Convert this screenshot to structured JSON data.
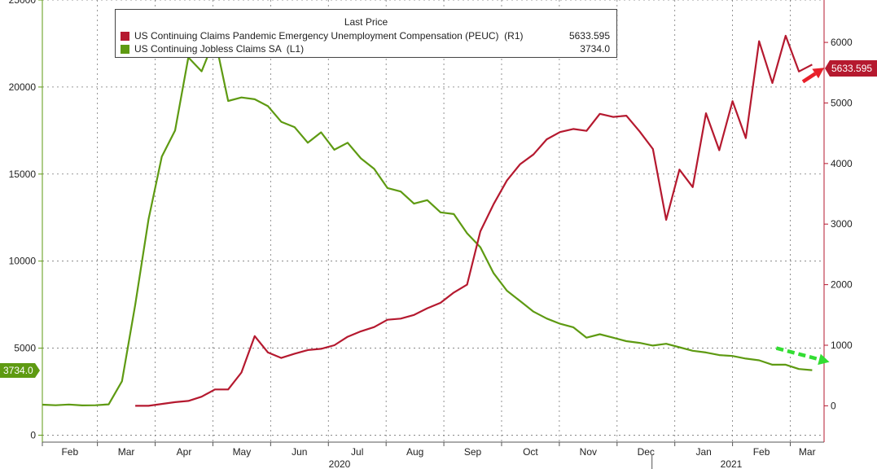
{
  "chart_data": {
    "type": "line",
    "legend": {
      "title": "Last Price",
      "placement": "top-left",
      "entries": [
        {
          "label": "US Continuing Claims Pandemic Emergency Unemployment Compensation (PEUC)  (R1)",
          "value": "5633.595",
          "color": "#b5192f"
        },
        {
          "label": "US Continuing Jobless Claims SA  (L1)",
          "value": "3734.0",
          "color": "#5e9a12"
        }
      ]
    },
    "x_axis": {
      "months": [
        "Feb",
        "Mar",
        "Apr",
        "May",
        "Jun",
        "Jul",
        "Aug",
        "Sep",
        "Oct",
        "Nov",
        "Dec",
        "Jan",
        "Feb",
        "Mar"
      ],
      "years": [
        "2020",
        "2021"
      ]
    },
    "y_left": {
      "ticks": [
        "0",
        "5000",
        "10000",
        "15000",
        "20000",
        "25000"
      ],
      "range": [
        -400,
        25000
      ]
    },
    "y_right": {
      "ticks": [
        "0",
        "1000",
        "2000",
        "3000",
        "4000",
        "5000",
        "6000"
      ],
      "range": [
        -600,
        6700
      ]
    },
    "last_value_labels": {
      "left": "3734.0",
      "right": "5633.595"
    },
    "grid": true,
    "series": [
      {
        "name": "US Continuing Jobless Claims SA",
        "axis": "left",
        "color": "#5e9a12",
        "values": [
          [
            0,
            1750
          ],
          [
            1,
            1720
          ],
          [
            2,
            1760
          ],
          [
            3,
            1710
          ],
          [
            4,
            1720
          ],
          [
            5,
            1770
          ],
          [
            6,
            3100
          ],
          [
            7,
            7500
          ],
          [
            8,
            12400
          ],
          [
            9,
            16000
          ],
          [
            10,
            17500
          ],
          [
            11,
            21700
          ],
          [
            12,
            20900
          ],
          [
            13,
            22800
          ],
          [
            14,
            19200
          ],
          [
            15,
            19400
          ],
          [
            16,
            19300
          ],
          [
            17,
            18900
          ],
          [
            18,
            18000
          ],
          [
            19,
            17700
          ],
          [
            20,
            16800
          ],
          [
            21,
            17400
          ],
          [
            22,
            16400
          ],
          [
            23,
            16800
          ],
          [
            24,
            15900
          ],
          [
            25,
            15300
          ],
          [
            26,
            14200
          ],
          [
            27,
            14000
          ],
          [
            28,
            13300
          ],
          [
            29,
            13500
          ],
          [
            30,
            12800
          ],
          [
            31,
            12700
          ],
          [
            32,
            11600
          ],
          [
            33,
            10800
          ],
          [
            34,
            9300
          ],
          [
            35,
            8300
          ],
          [
            36,
            7700
          ],
          [
            37,
            7100
          ],
          [
            38,
            6700
          ],
          [
            39,
            6400
          ],
          [
            40,
            6200
          ],
          [
            41,
            5600
          ],
          [
            42,
            5800
          ],
          [
            43,
            5600
          ],
          [
            44,
            5400
          ],
          [
            45,
            5300
          ],
          [
            46,
            5150
          ],
          [
            47,
            5250
          ],
          [
            48,
            5050
          ],
          [
            49,
            4850
          ],
          [
            50,
            4750
          ],
          [
            51,
            4600
          ],
          [
            52,
            4550
          ],
          [
            53,
            4400
          ],
          [
            54,
            4300
          ],
          [
            55,
            4050
          ],
          [
            56,
            4050
          ],
          [
            57,
            3800
          ],
          [
            58,
            3734
          ]
        ]
      },
      {
        "name": "US Continuing Claims Pandemic Emergency Unemployment Compensation (PEUC)",
        "axis": "right",
        "color": "#b5192f",
        "values": [
          [
            7,
            0
          ],
          [
            8,
            0
          ],
          [
            9,
            30
          ],
          [
            10,
            60
          ],
          [
            11,
            80
          ],
          [
            12,
            150
          ],
          [
            13,
            270
          ],
          [
            14,
            270
          ],
          [
            15,
            550
          ],
          [
            16,
            1150
          ],
          [
            17,
            880
          ],
          [
            18,
            790
          ],
          [
            19,
            860
          ],
          [
            20,
            920
          ],
          [
            21,
            940
          ],
          [
            22,
            1000
          ],
          [
            23,
            1140
          ],
          [
            24,
            1230
          ],
          [
            25,
            1300
          ],
          [
            26,
            1420
          ],
          [
            27,
            1440
          ],
          [
            28,
            1500
          ],
          [
            29,
            1610
          ],
          [
            30,
            1700
          ],
          [
            31,
            1870
          ],
          [
            32,
            2000
          ],
          [
            33,
            2880
          ],
          [
            34,
            3330
          ],
          [
            35,
            3720
          ],
          [
            36,
            3990
          ],
          [
            37,
            4150
          ],
          [
            38,
            4400
          ],
          [
            39,
            4520
          ],
          [
            40,
            4570
          ],
          [
            41,
            4540
          ],
          [
            42,
            4820
          ],
          [
            43,
            4770
          ],
          [
            44,
            4790
          ],
          [
            45,
            4530
          ],
          [
            46,
            4240
          ],
          [
            47,
            3070
          ],
          [
            48,
            3900
          ],
          [
            49,
            3610
          ],
          [
            50,
            4830
          ],
          [
            51,
            4220
          ],
          [
            52,
            5030
          ],
          [
            53,
            4420
          ],
          [
            54,
            6020
          ],
          [
            55,
            5330
          ],
          [
            56,
            6110
          ],
          [
            57,
            5520
          ],
          [
            58,
            5634
          ]
        ]
      }
    ],
    "annotations": [
      {
        "type": "arrow",
        "color": "#e8202a",
        "style": "solid",
        "from": [
          57.3,
          5350
        ],
        "to": [
          58.9,
          5580
        ],
        "axis": "right"
      },
      {
        "type": "arrow",
        "color": "#33dd33",
        "style": "dashed",
        "from": [
          55.3,
          5000
        ],
        "to": [
          59.3,
          4200
        ],
        "axis": "left"
      }
    ]
  }
}
